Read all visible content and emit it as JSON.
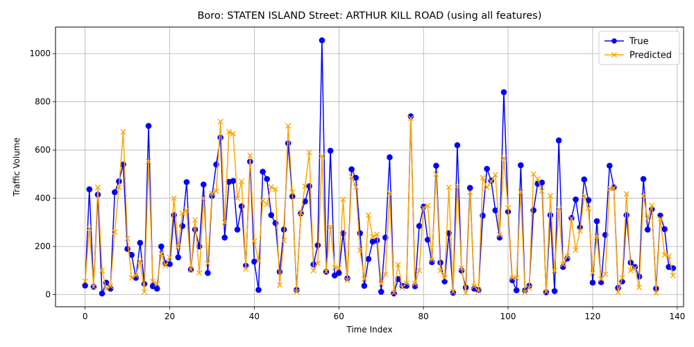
{
  "chart_data": {
    "type": "line",
    "title": "Boro: STATEN ISLAND Street: ARTHUR KILL ROAD (using all features)",
    "xlabel": "Time Index",
    "ylabel": "Traffic Volume",
    "xlim": [
      -7,
      141.5
    ],
    "ylim": [
      -50,
      1110
    ],
    "x_ticks": [
      0,
      20,
      40,
      60,
      80,
      100,
      120,
      140
    ],
    "y_ticks": [
      0,
      200,
      400,
      600,
      800,
      1000
    ],
    "grid": true,
    "legend_position": "top-right",
    "x": [
      0,
      1,
      2,
      3,
      4,
      5,
      6,
      7,
      8,
      9,
      10,
      11,
      12,
      13,
      14,
      15,
      16,
      17,
      18,
      19,
      20,
      21,
      22,
      23,
      24,
      25,
      26,
      27,
      28,
      29,
      30,
      31,
      32,
      33,
      34,
      35,
      36,
      37,
      38,
      39,
      40,
      41,
      42,
      43,
      44,
      45,
      46,
      47,
      48,
      49,
      50,
      51,
      52,
      53,
      54,
      55,
      56,
      57,
      58,
      59,
      60,
      61,
      62,
      63,
      64,
      65,
      66,
      67,
      68,
      69,
      70,
      71,
      72,
      73,
      74,
      75,
      76,
      77,
      78,
      79,
      80,
      81,
      82,
      83,
      84,
      85,
      86,
      87,
      88,
      89,
      90,
      91,
      92,
      93,
      94,
      95,
      96,
      97,
      98,
      99,
      100,
      101,
      102,
      103,
      104,
      105,
      106,
      107,
      108,
      109,
      110,
      111,
      112,
      113,
      114,
      115,
      116,
      117,
      118,
      119,
      120,
      121,
      122,
      123,
      124,
      125,
      126,
      127,
      128,
      129,
      130,
      131,
      132,
      133,
      134,
      135,
      136,
      137,
      138,
      139
    ],
    "series": [
      {
        "name": "True",
        "color": "#0000ff",
        "marker": "circle",
        "values": [
          38,
          437,
          33,
          415,
          5,
          50,
          25,
          425,
          470,
          540,
          190,
          165,
          70,
          215,
          45,
          700,
          35,
          25,
          200,
          130,
          127,
          330,
          155,
          285,
          467,
          105,
          270,
          200,
          457,
          90,
          410,
          540,
          652,
          237,
          468,
          472,
          270,
          367,
          120,
          552,
          137,
          20,
          510,
          480,
          330,
          297,
          95,
          270,
          628,
          408,
          20,
          337,
          387,
          450,
          125,
          205,
          1055,
          95,
          597,
          80,
          90,
          255,
          68,
          520,
          485,
          255,
          37,
          148,
          220,
          225,
          12,
          237,
          570,
          5,
          65,
          37,
          37,
          740,
          35,
          285,
          365,
          228,
          135,
          535,
          133,
          55,
          255,
          8,
          620,
          100,
          30,
          443,
          25,
          20,
          328,
          522,
          473,
          350,
          237,
          840,
          345,
          60,
          18,
          537,
          18,
          37,
          350,
          460,
          465,
          10,
          330,
          15,
          640,
          115,
          150,
          318,
          395,
          278,
          478,
          392,
          50,
          305,
          52,
          248,
          535,
          445,
          28,
          55,
          330,
          133,
          115,
          75,
          480,
          270,
          355,
          25,
          328,
          272,
          115,
          110
        ]
      },
      {
        "name": "Predicted",
        "color": "#ffa500",
        "marker": "x",
        "values": [
          55,
          275,
          33,
          445,
          100,
          25,
          35,
          260,
          445,
          675,
          233,
          70,
          80,
          140,
          12,
          553,
          55,
          45,
          170,
          120,
          155,
          400,
          200,
          338,
          350,
          103,
          310,
          90,
          400,
          130,
          420,
          430,
          718,
          300,
          675,
          668,
          400,
          470,
          107,
          577,
          222,
          140,
          390,
          375,
          447,
          437,
          40,
          225,
          700,
          425,
          12,
          340,
          450,
          590,
          100,
          130,
          575,
          95,
          282,
          113,
          110,
          395,
          60,
          490,
          447,
          185,
          65,
          330,
          240,
          250,
          45,
          85,
          420,
          8,
          125,
          30,
          48,
          732,
          45,
          100,
          360,
          370,
          145,
          500,
          100,
          70,
          445,
          12,
          450,
          110,
          8,
          425,
          35,
          15,
          485,
          445,
          470,
          497,
          248,
          567,
          360,
          70,
          70,
          425,
          10,
          28,
          500,
          480,
          430,
          13,
          410,
          100,
          355,
          125,
          160,
          315,
          185,
          265,
          410,
          358,
          90,
          240,
          65,
          85,
          440,
          443,
          10,
          70,
          418,
          100,
          110,
          30,
          410,
          315,
          370,
          8,
          315,
          165,
          160,
          80
        ]
      }
    ]
  }
}
